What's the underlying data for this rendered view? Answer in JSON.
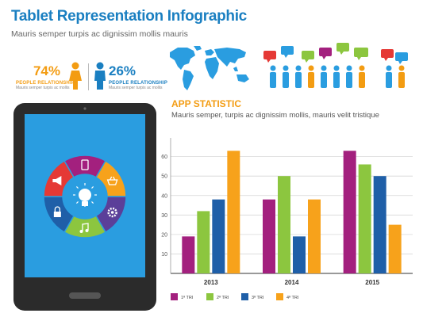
{
  "header": {
    "title": "Tablet Representation Infographic",
    "subtitle": "Mauris semper turpis ac dignissim mollis mauris"
  },
  "stats": [
    {
      "percent": "74%",
      "label": "PEOPLE RELATIONSHIP",
      "sub": "Mauris semper turpis ac mollis",
      "color": "#f39c12"
    },
    {
      "percent": "26%",
      "label": "PEOPLE RELATIONSHIP",
      "sub": "Mauris semper turpis ac mollis",
      "color": "#1a7fc1"
    }
  ],
  "app_statistic": {
    "title": "APP STATISTIC",
    "subtitle": "Mauris semper, turpis ac dignissim mollis, mauris velit tristique"
  },
  "chart_data": {
    "type": "bar",
    "categories": [
      "2013",
      "2014",
      "2015"
    ],
    "series": [
      {
        "name": "1ª TRI",
        "color": "#a3207e",
        "values": [
          19,
          38,
          63
        ]
      },
      {
        "name": "2ª TRI",
        "color": "#8cc63f",
        "values": [
          32,
          50,
          56
        ]
      },
      {
        "name": "3ª TRI",
        "color": "#1f5fa8",
        "values": [
          38,
          19,
          50
        ]
      },
      {
        "name": "4ª TRI",
        "color": "#f7a21b",
        "values": [
          63,
          38,
          25
        ]
      }
    ],
    "yticks": [
      10,
      20,
      30,
      40,
      50,
      60
    ],
    "ylim": [
      0,
      68
    ],
    "grid": true,
    "legend": "bottom"
  },
  "tablet": {
    "screen_color": "#2a9de0",
    "wheel_segments": [
      {
        "icon": "tablet-icon",
        "color": "#a3207e"
      },
      {
        "icon": "basket-icon",
        "color": "#f7a21b"
      },
      {
        "icon": "gear-icon",
        "color": "#5b3f99"
      },
      {
        "icon": "music-icon",
        "color": "#8cc63f"
      },
      {
        "icon": "lock-icon",
        "color": "#1f5fa8"
      },
      {
        "icon": "megaphone-icon",
        "color": "#e53935"
      }
    ],
    "center_icon": "lightbulb-icon"
  }
}
